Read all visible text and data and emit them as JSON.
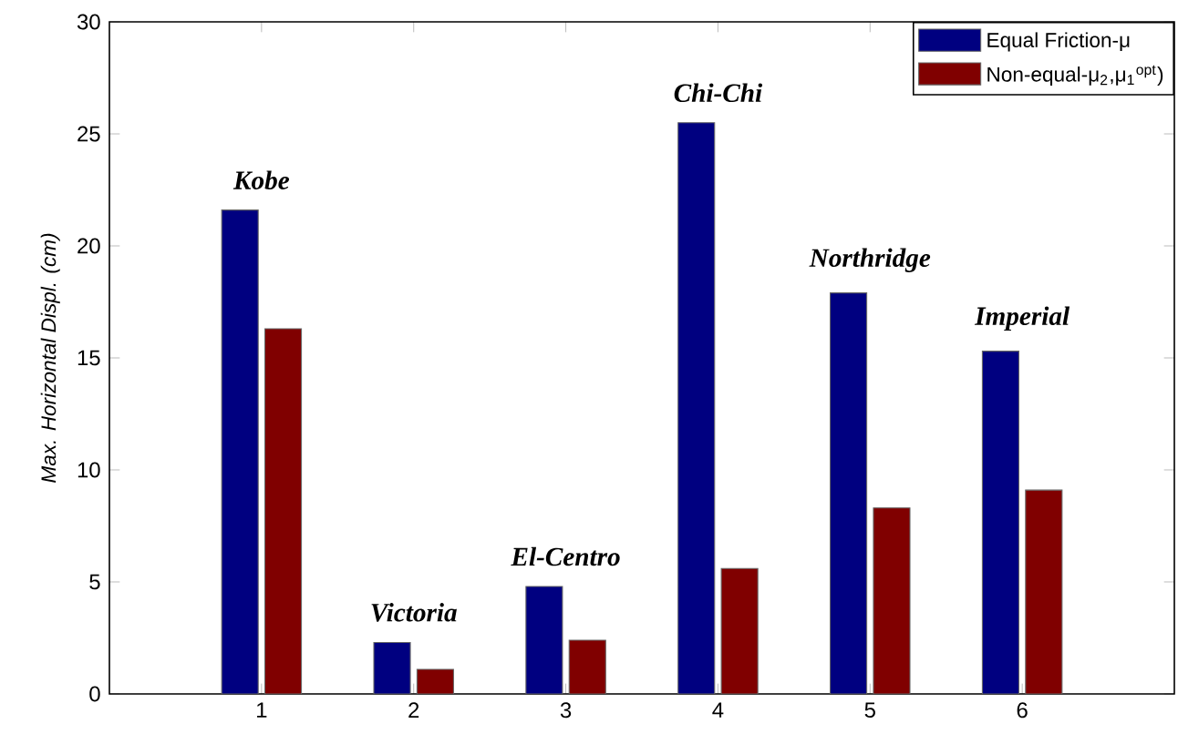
{
  "chart_data": {
    "type": "bar",
    "ylabel": "Max. Horizontal Displ. (cm)",
    "categories": [
      "1",
      "2",
      "3",
      "4",
      "5",
      "6"
    ],
    "series": [
      {
        "name": "Equal Friction-μ",
        "color": "#000080",
        "values": [
          21.6,
          2.3,
          4.8,
          25.5,
          17.9,
          15.3
        ]
      },
      {
        "name": "Non-equal-μ$_{2}$,μ$_{1}$$^{opt}$)",
        "color": "#800000",
        "values": [
          16.3,
          1.1,
          2.4,
          5.6,
          8.3,
          9.1
        ]
      }
    ],
    "ylim": [
      0,
      30
    ],
    "yticks": [
      0,
      5,
      10,
      15,
      20,
      25,
      30
    ],
    "legend": "top right",
    "grid": false,
    "annotations": [
      {
        "text": "Kobe",
        "x": "1",
        "y": 21.6
      },
      {
        "text": "Victoria",
        "x": "2",
        "y": 2.3
      },
      {
        "text": "El-Centro",
        "x": "3",
        "y": 4.8
      },
      {
        "text": "Chi-Chi",
        "x": "4",
        "y": 25.5
      },
      {
        "text": "Northridge",
        "x": "5",
        "y": 17.9
      },
      {
        "text": "Imperial",
        "x": "6",
        "y": 15.3
      }
    ]
  }
}
